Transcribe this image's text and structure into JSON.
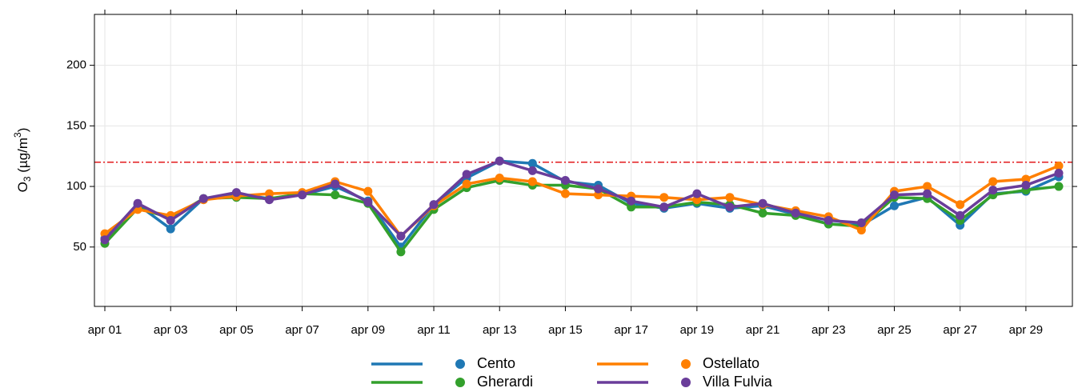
{
  "chart_data": {
    "type": "line",
    "ylabel": {
      "base": "O",
      "sub": "3",
      "mid": " (µg/m",
      "sup": "3",
      "end": ")"
    },
    "categories": [
      "apr 01",
      null,
      "apr 03",
      null,
      "apr 05",
      null,
      "apr 07",
      null,
      "apr 09",
      null,
      "apr 11",
      null,
      "apr 13",
      null,
      "apr 15",
      null,
      "apr 17",
      null,
      "apr 19",
      null,
      "apr 21",
      null,
      "apr 23",
      null,
      "apr 25",
      null,
      "apr 27",
      null,
      "apr 29",
      null
    ],
    "series": [
      {
        "name": "Cento",
        "color": "#1f78b4",
        "values": [
          57,
          85,
          65,
          90,
          94,
          90,
          93,
          100,
          88,
          50,
          85,
          107,
          121,
          119,
          104,
          101,
          86,
          82,
          86,
          82,
          84,
          77,
          69,
          68,
          84,
          91,
          68,
          94,
          96,
          108
        ]
      },
      {
        "name": "Gherardi",
        "color": "#33a02c",
        "values": [
          53,
          82,
          74,
          90,
          91,
          90,
          94,
          93,
          86,
          46,
          81,
          99,
          105,
          101,
          101,
          98,
          83,
          83,
          87,
          85,
          78,
          76,
          69,
          67,
          91,
          90,
          72,
          93,
          97,
          100
        ]
      },
      {
        "name": "Ostellato",
        "color": "#ff7f00",
        "values": [
          61,
          81,
          76,
          89,
          92,
          94,
          95,
          104,
          96,
          59,
          84,
          102,
          107,
          104,
          94,
          93,
          92,
          91,
          89,
          91,
          85,
          80,
          75,
          64,
          96,
          100,
          85,
          104,
          106,
          117
        ]
      },
      {
        "name": "Villa Fulvia",
        "color": "#6a3d9a",
        "values": [
          56,
          86,
          72,
          90,
          95,
          89,
          93,
          102,
          87,
          59,
          85,
          110,
          121,
          113,
          105,
          98,
          88,
          83,
          94,
          83,
          86,
          78,
          72,
          70,
          93,
          94,
          76,
          97,
          101,
          111
        ]
      }
    ],
    "ylim": [
      1,
      242
    ],
    "yticks": [
      50,
      100,
      150,
      200
    ],
    "grid": true,
    "hline": {
      "value": 120,
      "color": "#e31a1c"
    }
  }
}
